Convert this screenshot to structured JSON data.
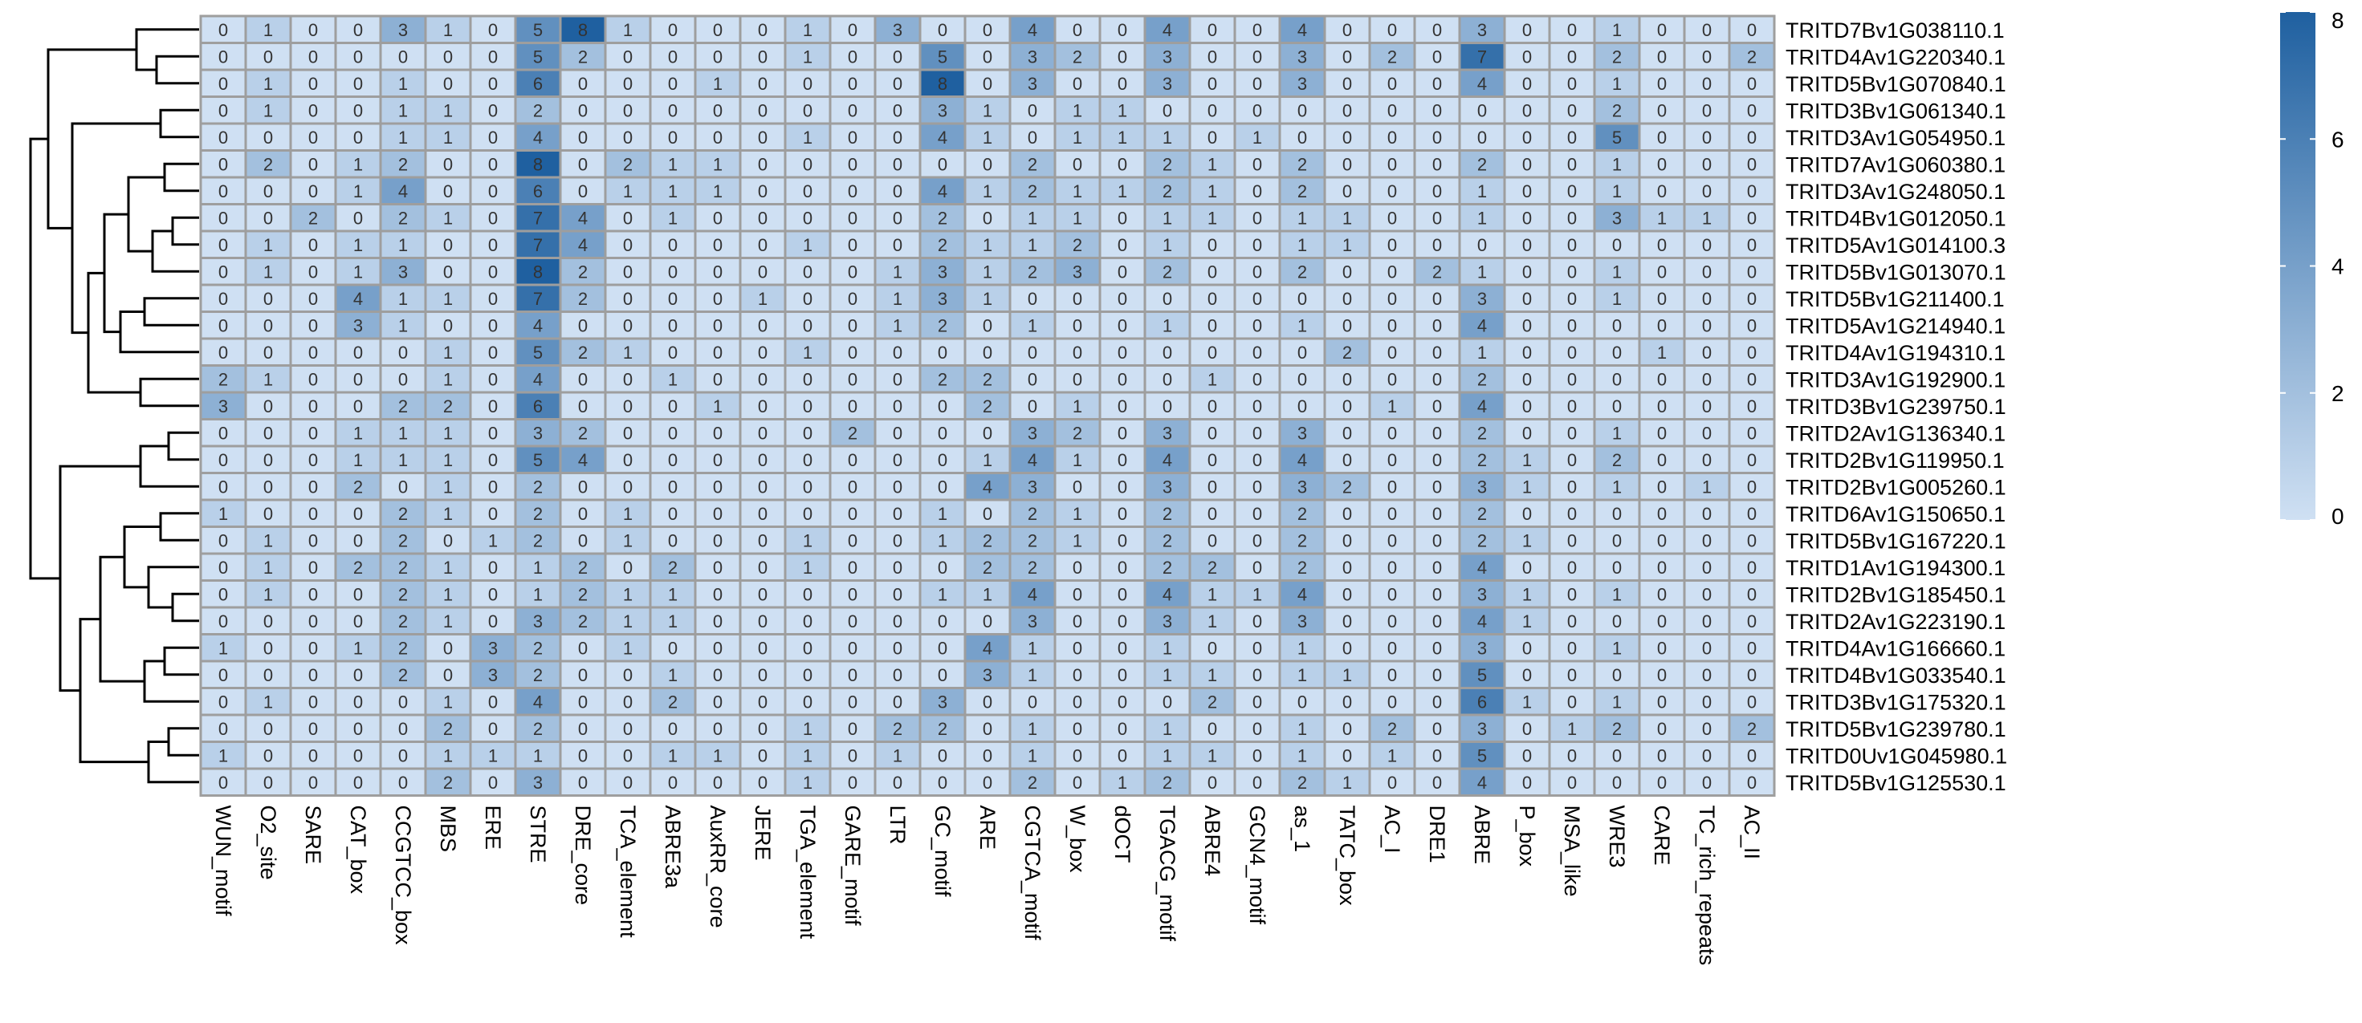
{
  "chart_data": {
    "type": "heatmap",
    "title": "",
    "xlabel": "",
    "ylabel": "",
    "columns": [
      "WUN_motif",
      "O2_site",
      "SARE",
      "CAT_box",
      "CCGTCC_box",
      "MBS",
      "ERE",
      "STRE",
      "DRE_core",
      "TCA_element",
      "ABRE3a",
      "AuxRR_core",
      "JERE",
      "TGA_element",
      "GARE_motif",
      "LTR",
      "GC_motif",
      "ARE",
      "CGTCA_motif",
      "W_box",
      "dOCT",
      "TGACG_motif",
      "ABRE4",
      "GCN4_motif",
      "as_1",
      "TATC_box",
      "AC_I",
      "DRE1",
      "ABRE",
      "P_box",
      "MSA_like",
      "WRE3",
      "CARE",
      "TC_rich_repeats",
      "AC_II"
    ],
    "rows": [
      "TRITD7Bv1G038110.1",
      "TRITD4Av1G220340.1",
      "TRITD5Bv1G070840.1",
      "TRITD3Bv1G061340.1",
      "TRITD3Av1G054950.1",
      "TRITD7Av1G060380.1",
      "TRITD3Av1G248050.1",
      "TRITD4Bv1G012050.1",
      "TRITD5Av1G014100.3",
      "TRITD5Bv1G013070.1",
      "TRITD5Bv1G211400.1",
      "TRITD5Av1G214940.1",
      "TRITD4Av1G194310.1",
      "TRITD3Av1G192900.1",
      "TRITD3Bv1G239750.1",
      "TRITD2Av1G136340.1",
      "TRITD2Bv1G119950.1",
      "TRITD2Bv1G005260.1",
      "TRITD6Av1G150650.1",
      "TRITD5Bv1G167220.1",
      "TRITD1Av1G194300.1",
      "TRITD2Bv1G185450.1",
      "TRITD2Av1G223190.1",
      "TRITD4Av1G166660.1",
      "TRITD4Bv1G033540.1",
      "TRITD3Bv1G175320.1",
      "TRITD5Bv1G239780.1",
      "TRITD0Uv1G045980.1",
      "TRITD5Bv1G125530.1"
    ],
    "values": [
      [
        0,
        1,
        0,
        0,
        3,
        1,
        0,
        5,
        8,
        1,
        0,
        0,
        0,
        1,
        0,
        3,
        0,
        0,
        4,
        0,
        0,
        4,
        0,
        0,
        4,
        0,
        0,
        0,
        3,
        0,
        0,
        1,
        0,
        0,
        0
      ],
      [
        0,
        0,
        0,
        0,
        0,
        0,
        0,
        5,
        2,
        0,
        0,
        0,
        0,
        1,
        0,
        0,
        5,
        0,
        3,
        2,
        0,
        3,
        0,
        0,
        3,
        0,
        2,
        0,
        7,
        0,
        0,
        2,
        0,
        0,
        2
      ],
      [
        0,
        1,
        0,
        0,
        1,
        0,
        0,
        6,
        0,
        0,
        0,
        1,
        0,
        0,
        0,
        0,
        8,
        0,
        3,
        0,
        0,
        3,
        0,
        0,
        3,
        0,
        0,
        0,
        4,
        0,
        0,
        1,
        0,
        0,
        0
      ],
      [
        0,
        1,
        0,
        0,
        1,
        1,
        0,
        2,
        0,
        0,
        0,
        0,
        0,
        0,
        0,
        0,
        3,
        1,
        0,
        1,
        1,
        0,
        0,
        0,
        0,
        0,
        0,
        0,
        0,
        0,
        0,
        2,
        0,
        0,
        0
      ],
      [
        0,
        0,
        0,
        0,
        1,
        1,
        0,
        4,
        0,
        0,
        0,
        0,
        0,
        1,
        0,
        0,
        4,
        1,
        0,
        1,
        1,
        1,
        0,
        1,
        0,
        0,
        0,
        0,
        0,
        0,
        0,
        5,
        0,
        0,
        0
      ],
      [
        0,
        2,
        0,
        1,
        2,
        0,
        0,
        8,
        0,
        2,
        1,
        1,
        0,
        0,
        0,
        0,
        0,
        0,
        2,
        0,
        0,
        2,
        1,
        0,
        2,
        0,
        0,
        0,
        2,
        0,
        0,
        1,
        0,
        0,
        0
      ],
      [
        0,
        0,
        0,
        1,
        4,
        0,
        0,
        6,
        0,
        1,
        1,
        1,
        0,
        0,
        0,
        0,
        4,
        1,
        2,
        1,
        1,
        2,
        1,
        0,
        2,
        0,
        0,
        0,
        1,
        0,
        0,
        1,
        0,
        0,
        0
      ],
      [
        0,
        0,
        2,
        0,
        2,
        1,
        0,
        7,
        4,
        0,
        1,
        0,
        0,
        0,
        0,
        0,
        2,
        0,
        1,
        1,
        0,
        1,
        1,
        0,
        1,
        1,
        0,
        0,
        1,
        0,
        0,
        3,
        1,
        1,
        0
      ],
      [
        0,
        1,
        0,
        1,
        1,
        0,
        0,
        7,
        4,
        0,
        0,
        0,
        0,
        1,
        0,
        0,
        2,
        1,
        1,
        2,
        0,
        1,
        0,
        0,
        1,
        1,
        0,
        0,
        0,
        0,
        0,
        0,
        0,
        0,
        0
      ],
      [
        0,
        1,
        0,
        1,
        3,
        0,
        0,
        8,
        2,
        0,
        0,
        0,
        0,
        0,
        0,
        1,
        3,
        1,
        2,
        3,
        0,
        2,
        0,
        0,
        2,
        0,
        0,
        2,
        1,
        0,
        0,
        1,
        0,
        0,
        0
      ],
      [
        0,
        0,
        0,
        4,
        1,
        1,
        0,
        7,
        2,
        0,
        0,
        0,
        1,
        0,
        0,
        1,
        3,
        1,
        0,
        0,
        0,
        0,
        0,
        0,
        0,
        0,
        0,
        0,
        3,
        0,
        0,
        1,
        0,
        0,
        0
      ],
      [
        0,
        0,
        0,
        3,
        1,
        0,
        0,
        4,
        0,
        0,
        0,
        0,
        0,
        0,
        0,
        1,
        2,
        0,
        1,
        0,
        0,
        1,
        0,
        0,
        1,
        0,
        0,
        0,
        4,
        0,
        0,
        0,
        0,
        0,
        0
      ],
      [
        0,
        0,
        0,
        0,
        0,
        1,
        0,
        5,
        2,
        1,
        0,
        0,
        0,
        1,
        0,
        0,
        0,
        0,
        0,
        0,
        0,
        0,
        0,
        0,
        0,
        2,
        0,
        0,
        1,
        0,
        0,
        0,
        1,
        0,
        0
      ],
      [
        2,
        1,
        0,
        0,
        0,
        1,
        0,
        4,
        0,
        0,
        1,
        0,
        0,
        0,
        0,
        0,
        2,
        2,
        0,
        0,
        0,
        0,
        1,
        0,
        0,
        0,
        0,
        0,
        2,
        0,
        0,
        0,
        0,
        0,
        0
      ],
      [
        3,
        0,
        0,
        0,
        2,
        2,
        0,
        6,
        0,
        0,
        0,
        1,
        0,
        0,
        0,
        0,
        0,
        2,
        0,
        1,
        0,
        0,
        0,
        0,
        0,
        0,
        1,
        0,
        4,
        0,
        0,
        0,
        0,
        0,
        0
      ],
      [
        0,
        0,
        0,
        1,
        1,
        1,
        0,
        3,
        2,
        0,
        0,
        0,
        0,
        0,
        2,
        0,
        0,
        0,
        3,
        2,
        0,
        3,
        0,
        0,
        3,
        0,
        0,
        0,
        2,
        0,
        0,
        1,
        0,
        0,
        0
      ],
      [
        0,
        0,
        0,
        1,
        1,
        1,
        0,
        5,
        4,
        0,
        0,
        0,
        0,
        0,
        0,
        0,
        0,
        1,
        4,
        1,
        0,
        4,
        0,
        0,
        4,
        0,
        0,
        0,
        2,
        1,
        0,
        2,
        0,
        0,
        0
      ],
      [
        0,
        0,
        0,
        2,
        0,
        1,
        0,
        2,
        0,
        0,
        0,
        0,
        0,
        0,
        0,
        0,
        0,
        4,
        3,
        0,
        0,
        3,
        0,
        0,
        3,
        2,
        0,
        0,
        3,
        1,
        0,
        1,
        0,
        1,
        0
      ],
      [
        1,
        0,
        0,
        0,
        2,
        1,
        0,
        2,
        0,
        1,
        0,
        0,
        0,
        0,
        0,
        0,
        1,
        0,
        2,
        1,
        0,
        2,
        0,
        0,
        2,
        0,
        0,
        0,
        2,
        0,
        0,
        0,
        0,
        0,
        0
      ],
      [
        0,
        1,
        0,
        0,
        2,
        0,
        1,
        2,
        0,
        1,
        0,
        0,
        0,
        1,
        0,
        0,
        1,
        2,
        2,
        1,
        0,
        2,
        0,
        0,
        2,
        0,
        0,
        0,
        2,
        1,
        0,
        0,
        0,
        0,
        0
      ],
      [
        0,
        1,
        0,
        2,
        2,
        1,
        0,
        1,
        2,
        0,
        2,
        0,
        0,
        1,
        0,
        0,
        0,
        2,
        2,
        0,
        0,
        2,
        2,
        0,
        2,
        0,
        0,
        0,
        4,
        0,
        0,
        0,
        0,
        0,
        0
      ],
      [
        0,
        1,
        0,
        0,
        2,
        1,
        0,
        1,
        2,
        1,
        1,
        0,
        0,
        0,
        0,
        0,
        1,
        1,
        4,
        0,
        0,
        4,
        1,
        1,
        4,
        0,
        0,
        0,
        3,
        1,
        0,
        1,
        0,
        0,
        0
      ],
      [
        0,
        0,
        0,
        0,
        2,
        1,
        0,
        3,
        2,
        1,
        1,
        0,
        0,
        0,
        0,
        0,
        0,
        0,
        3,
        0,
        0,
        3,
        1,
        0,
        3,
        0,
        0,
        0,
        4,
        1,
        0,
        0,
        0,
        0,
        0
      ],
      [
        1,
        0,
        0,
        1,
        2,
        0,
        3,
        2,
        0,
        1,
        0,
        0,
        0,
        0,
        0,
        0,
        0,
        4,
        1,
        0,
        0,
        1,
        0,
        0,
        1,
        0,
        0,
        0,
        3,
        0,
        0,
        1,
        0,
        0,
        0
      ],
      [
        0,
        0,
        0,
        0,
        2,
        0,
        3,
        2,
        0,
        0,
        1,
        0,
        0,
        0,
        0,
        0,
        0,
        3,
        1,
        0,
        0,
        1,
        1,
        0,
        1,
        1,
        0,
        0,
        5,
        0,
        0,
        0,
        0,
        0,
        0
      ],
      [
        0,
        1,
        0,
        0,
        0,
        1,
        0,
        4,
        0,
        0,
        2,
        0,
        0,
        0,
        0,
        0,
        3,
        0,
        0,
        0,
        0,
        0,
        2,
        0,
        0,
        0,
        0,
        0,
        6,
        1,
        0,
        1,
        0,
        0,
        0
      ],
      [
        0,
        0,
        0,
        0,
        0,
        2,
        0,
        2,
        0,
        0,
        0,
        0,
        0,
        1,
        0,
        2,
        2,
        0,
        1,
        0,
        0,
        1,
        0,
        0,
        1,
        0,
        2,
        0,
        3,
        0,
        1,
        2,
        0,
        0,
        2
      ],
      [
        1,
        0,
        0,
        0,
        0,
        1,
        1,
        1,
        0,
        0,
        1,
        1,
        0,
        1,
        0,
        1,
        0,
        0,
        1,
        0,
        0,
        1,
        1,
        0,
        1,
        0,
        1,
        0,
        5,
        0,
        0,
        0,
        0,
        0,
        0
      ],
      [
        0,
        0,
        0,
        0,
        0,
        2,
        0,
        3,
        0,
        0,
        0,
        0,
        0,
        1,
        0,
        0,
        0,
        0,
        2,
        0,
        1,
        2,
        0,
        0,
        2,
        1,
        0,
        0,
        4,
        0,
        0,
        0,
        0,
        0,
        0
      ]
    ],
    "color_scale": {
      "min": 0,
      "max": 8,
      "low_color": "#cfe0f3",
      "high_color": "#1f60a0"
    },
    "legend": {
      "position": "right",
      "ticks": [
        0,
        2,
        4,
        6,
        8
      ]
    },
    "cell_border_color": "#9e9e9e",
    "dendrogram": "rows",
    "grid": false
  }
}
